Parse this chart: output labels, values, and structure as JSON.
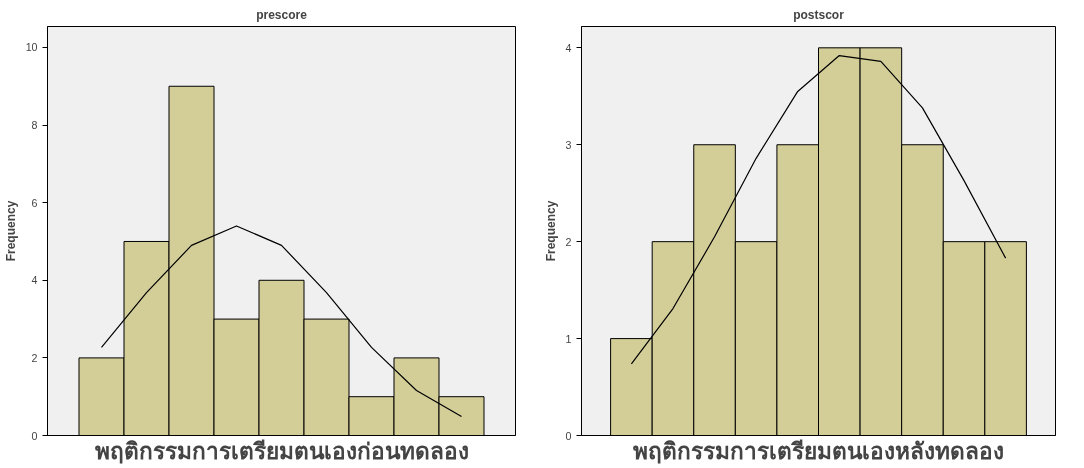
{
  "chart_data": [
    {
      "type": "bar",
      "title": "prescore",
      "xlabel": "พฤติกรรมการเตรียมตนเองก่อนทดลอง",
      "ylabel": "Frequency",
      "categories": [
        null,
        null,
        null,
        null,
        null,
        null,
        null,
        null,
        null
      ],
      "ylim": [
        0,
        10.54
      ],
      "yticks": [
        0,
        2,
        4,
        6,
        8,
        10
      ],
      "tick_labels": "y",
      "grid": false,
      "series": [
        {
          "type": "bar",
          "color": "#d3cd98",
          "values": [
            2,
            5,
            9,
            3,
            4,
            3,
            1,
            2,
            1
          ]
        },
        {
          "type": "line",
          "color": "#000000",
          "values": [
            2.27,
            3.68,
            4.9,
            5.4,
            4.9,
            3.68,
            2.27,
            1.16,
            0.49
          ]
        }
      ]
    },
    {
      "type": "bar",
      "title": "postscor",
      "xlabel": "พฤติกรรมการเตรียมตนเองหลังทดลอง",
      "ylabel": "Frequency",
      "categories": [
        null,
        null,
        null,
        null,
        null,
        null,
        null,
        null,
        null,
        null
      ],
      "ylim": [
        0,
        4.22
      ],
      "yticks": [
        0,
        1,
        2,
        3,
        4
      ],
      "tick_labels": "y",
      "grid": false,
      "series": [
        {
          "type": "bar",
          "color": "#d3cd98",
          "values": [
            1,
            2,
            3,
            2,
            3,
            4,
            4,
            3,
            2,
            2
          ]
        },
        {
          "type": "line",
          "color": "#000000",
          "values": [
            0.74,
            1.31,
            2.05,
            2.86,
            3.55,
            3.92,
            3.86,
            3.38,
            2.63,
            1.83
          ]
        }
      ]
    }
  ]
}
